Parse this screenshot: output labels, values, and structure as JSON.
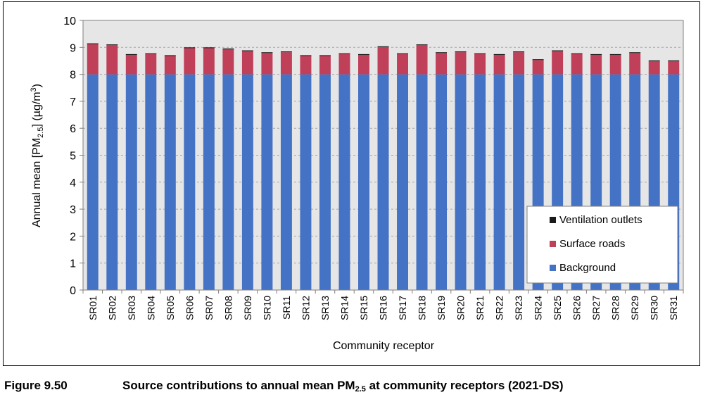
{
  "caption": {
    "figure_number": "Figure 9.50",
    "title_pre": "Source contributions to annual mean PM",
    "title_sub": "2.5",
    "title_post": " at community receptors (2021-DS)"
  },
  "chart_data": {
    "type": "bar",
    "stacked": true,
    "xlabel": "Community receptor",
    "ylabel_pre": "Annual  mean [PM",
    "ylabel_sub": "2.5",
    "ylabel_mid": "] (µg/m",
    "ylabel_sup": "3",
    "ylabel_post": ")",
    "ylim": [
      0,
      10
    ],
    "yticks": [
      "0",
      "1",
      "2",
      "3",
      "4",
      "5",
      "6",
      "7",
      "8",
      "9",
      "10"
    ],
    "grid": true,
    "legend_position": "bottom-right",
    "categories": [
      "SR01",
      "SR02",
      "SR03",
      "SR04",
      "SR05",
      "SR06",
      "SR07",
      "SR08",
      "SR09",
      "SR10",
      "SR11",
      "SR12",
      "SR13",
      "SR14",
      "SR15",
      "SR16",
      "SR17",
      "SR18",
      "SR19",
      "SR20",
      "SR21",
      "SR22",
      "SR23",
      "SR24",
      "SR25",
      "SR26",
      "SR27",
      "SR28",
      "SR29",
      "SR30",
      "SR31"
    ],
    "series": [
      {
        "name": "Background",
        "color": "#4472C4",
        "values": [
          8,
          8,
          8,
          8,
          8,
          8,
          8,
          8,
          8,
          8,
          8,
          8,
          8,
          8,
          8,
          8,
          8,
          8,
          8,
          8,
          8,
          8,
          8,
          8,
          8,
          8,
          8,
          8,
          8,
          8,
          8
        ]
      },
      {
        "name": "Surface roads",
        "color": "#C0405A",
        "values": [
          1.12,
          1.08,
          0.72,
          0.75,
          0.68,
          0.97,
          0.97,
          0.93,
          0.86,
          0.79,
          0.82,
          0.68,
          0.68,
          0.75,
          0.72,
          1.01,
          0.75,
          1.08,
          0.79,
          0.82,
          0.75,
          0.72,
          0.82,
          0.53,
          0.86,
          0.75,
          0.72,
          0.72,
          0.79,
          0.49,
          0.49
        ]
      },
      {
        "name": "Ventilation outlets",
        "color": "#1a1a1a",
        "values": [
          0.03,
          0.03,
          0.03,
          0.03,
          0.03,
          0.03,
          0.03,
          0.03,
          0.03,
          0.03,
          0.03,
          0.03,
          0.03,
          0.03,
          0.03,
          0.03,
          0.03,
          0.03,
          0.03,
          0.03,
          0.03,
          0.03,
          0.03,
          0.03,
          0.03,
          0.03,
          0.03,
          0.03,
          0.03,
          0.03,
          0.03
        ]
      }
    ]
  }
}
